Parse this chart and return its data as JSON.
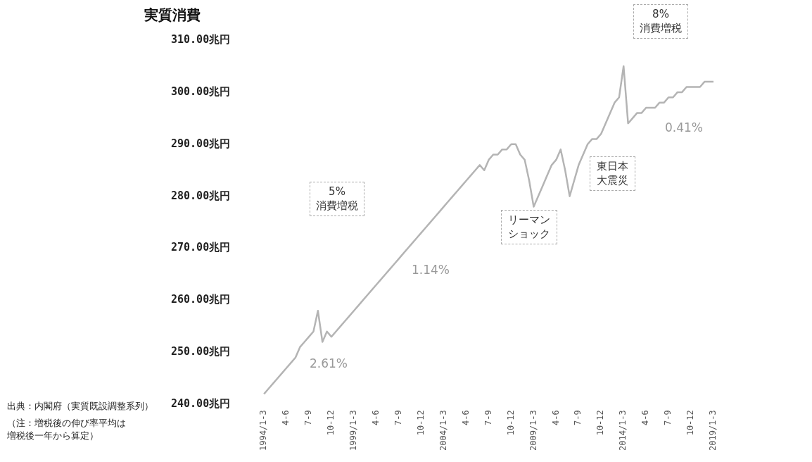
{
  "chart_data": {
    "type": "line",
    "ylabel": "実質消費",
    "categories": [
      "1994/1-3",
      null,
      null,
      null,
      null,
      "4-6",
      null,
      null,
      null,
      null,
      "7-9",
      null,
      null,
      null,
      null,
      "10-12",
      null,
      null,
      null,
      null,
      "1999/1-3",
      null,
      null,
      null,
      null,
      "4-6",
      null,
      null,
      null,
      null,
      "7-9",
      null,
      null,
      null,
      null,
      "10-12",
      null,
      null,
      null,
      null,
      "2004/1-3",
      null,
      null,
      null,
      null,
      "4-6",
      null,
      null,
      null,
      null,
      "7-9",
      null,
      null,
      null,
      null,
      "10-12",
      null,
      null,
      null,
      null,
      "2009/1-3",
      null,
      null,
      null,
      null,
      "4-6",
      null,
      null,
      null,
      null,
      "7-9",
      null,
      null,
      null,
      null,
      "10-12",
      null,
      null,
      null,
      null,
      "2014/1-3",
      null,
      null,
      null,
      null,
      "4-6",
      null,
      null,
      null,
      null,
      "7-9",
      null,
      null,
      null,
      null,
      "10-12",
      null,
      null,
      null,
      null,
      "2019/1-3"
    ],
    "series": [
      {
        "color": "#b4b4b4",
        "values": [
          242,
          243,
          244,
          245,
          246,
          247,
          248,
          249,
          251,
          252,
          253,
          254,
          258,
          252,
          254,
          253,
          254,
          255,
          256,
          257,
          258,
          259,
          260,
          261,
          262,
          263,
          264,
          265,
          266,
          267,
          268,
          269,
          270,
          271,
          272,
          273,
          274,
          275,
          276,
          277,
          278,
          279,
          280,
          281,
          282,
          283,
          284,
          285,
          286,
          285,
          287,
          288,
          288,
          289,
          289,
          290,
          290,
          288,
          287,
          283,
          278,
          280,
          282,
          284,
          286,
          287,
          289,
          285,
          280,
          283,
          286,
          288,
          290,
          291,
          291,
          292,
          294,
          296,
          298,
          299,
          305,
          294,
          295,
          296,
          296,
          297,
          297,
          297,
          298,
          298,
          299,
          299,
          300,
          300,
          301,
          301,
          301,
          301,
          302,
          302,
          302
        ]
      }
    ],
    "ylim": [
      240,
      310
    ],
    "yticks": [
      {
        "value": 240,
        "label": "240.00兆円"
      },
      {
        "value": 250,
        "label": "250.00兆円"
      },
      {
        "value": 260,
        "label": "260.00兆円"
      },
      {
        "value": 270,
        "label": "270.00兆円"
      },
      {
        "value": 280,
        "label": "280.00兆円"
      },
      {
        "value": 290,
        "label": "290.00兆円"
      },
      {
        "value": 300,
        "label": "300.00兆円"
      },
      {
        "value": 310,
        "label": "310.00兆円"
      }
    ],
    "grid": false,
    "legend": false,
    "marker": "none",
    "line_style": "solid",
    "annotations": [
      "5%\n消費増税",
      "2.61%",
      "1.14%",
      "リーマンショック",
      "東日本大震災",
      "8%\n消費増税",
      "0.41%",
      "出典：内閣府（実質既設調整系列）",
      "（注：増税後の伸び率平均は増税後一年から算定）"
    ]
  }
}
